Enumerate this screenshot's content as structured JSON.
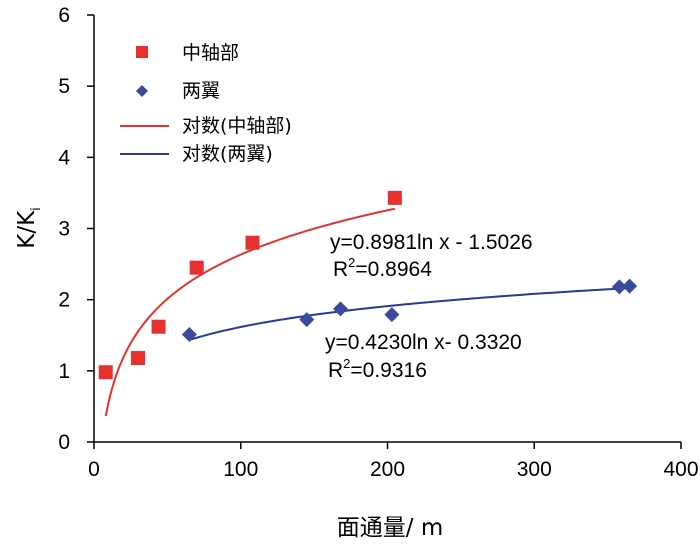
{
  "chart_data": {
    "type": "scatter",
    "title": "",
    "xlabel": "面通量/ m",
    "ylabel": "K/K",
    "ylabel_sub": "i",
    "xlim": [
      0,
      400
    ],
    "ylim": [
      0,
      6
    ],
    "xticks": [
      0,
      100,
      200,
      300,
      400
    ],
    "yticks": [
      0,
      1,
      2,
      3,
      4,
      5,
      6
    ],
    "series": [
      {
        "name": "中轴部",
        "marker": "square",
        "color": "#e8312e",
        "points": [
          [
            8,
            0.98
          ],
          [
            30,
            1.18
          ],
          [
            44,
            1.62
          ],
          [
            70,
            2.45
          ],
          [
            108,
            2.8
          ],
          [
            205,
            3.43
          ]
        ]
      },
      {
        "name": "两翼",
        "marker": "diamond",
        "color": "#3a4a9c",
        "points": [
          [
            65,
            1.51
          ],
          [
            145,
            1.72
          ],
          [
            168,
            1.87
          ],
          [
            203,
            1.79
          ],
          [
            358,
            2.18
          ],
          [
            365,
            2.19
          ]
        ]
      }
    ],
    "trendlines": [
      {
        "name": "对数(中轴部)",
        "type": "log",
        "a": 0.8981,
        "b": -1.5026,
        "x_range": [
          8,
          205
        ],
        "color": "#e8312e",
        "equation": "y=0.8981ln x  - 1.5026",
        "r2_prefix": "R",
        "r2_exp": "2",
        "r2_value": "=0.8964"
      },
      {
        "name": "对数(两翼)",
        "type": "log",
        "a": 0.423,
        "b": -0.332,
        "x_range": [
          65,
          365
        ],
        "color": "#2b3990",
        "equation": "y=0.4230ln x- 0.3320",
        "r2_prefix": "R",
        "r2_exp": "2",
        "r2_value": "=0.9316"
      }
    ],
    "legend": {
      "placement": "top-left",
      "entries": [
        "中轴部",
        "两翼",
        "对数(中轴部)",
        "对数(两翼)"
      ]
    }
  }
}
